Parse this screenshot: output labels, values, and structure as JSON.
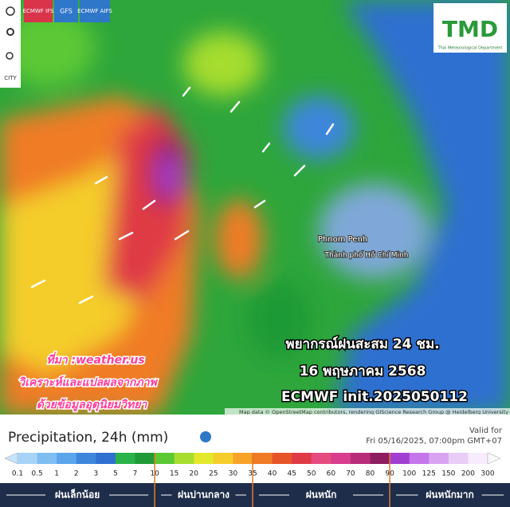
{
  "toolbar": {
    "models": [
      "ECMWF IFS",
      "GFS",
      "ECMWF AIFS"
    ],
    "city": "CITY"
  },
  "logo": {
    "title": "TMD",
    "subtitle": "Thai Meteorological Department"
  },
  "map": {
    "places": [
      "Phnom Penh",
      "Thành phố Hồ Chí Minh"
    ],
    "source": [
      "ที่มา :weather.us",
      "วิเคราะห์และแปลผลจากภาพ",
      "ด้วยข้อมูลอุตุนิยมวิทยา"
    ],
    "caption": [
      "พยากรณ์ฝนสะสม 24 ชม.",
      "16 พฤษภาคม 2568",
      "ECMWF init.2025050112"
    ],
    "attribution": "Map data © OpenStreetMap contributors, rendering GIScience Research Group @ Heidelberg University"
  },
  "legend": {
    "title": "Precipitation, 24h (mm)",
    "valid_label": "Valid for",
    "valid_time": "Fri 05/16/2025, 07:00pm GMT+07",
    "scale": {
      "labels": [
        "0.1",
        "0.5",
        "1",
        "2",
        "3",
        "5",
        "7",
        "10",
        "15",
        "20",
        "25",
        "30",
        "35",
        "40",
        "45",
        "50",
        "60",
        "70",
        "80",
        "90",
        "100",
        "125",
        "150",
        "200",
        "300"
      ],
      "colors": [
        "#c8e4fb",
        "#a6d3f7",
        "#7fbdf2",
        "#5aa5ec",
        "#3d86dc",
        "#2f6fd0",
        "#2ab34a",
        "#1f9a36",
        "#5cc834",
        "#a6dd2e",
        "#e3e82c",
        "#f4cd2a",
        "#f7a328",
        "#f07b25",
        "#e8542a",
        "#df3a45",
        "#e64b80",
        "#d83d8e",
        "#b92c7a",
        "#8e1e60",
        "#a23fd2",
        "#c476ea",
        "#d8a4f1",
        "#e9cdf7",
        "#f6ecfb",
        "#fafafa"
      ]
    },
    "classes": [
      "ฝนเล็กน้อย",
      "ฝนปานกลาง",
      "ฝนหนัก",
      "ฝนหนักมาก"
    ]
  }
}
